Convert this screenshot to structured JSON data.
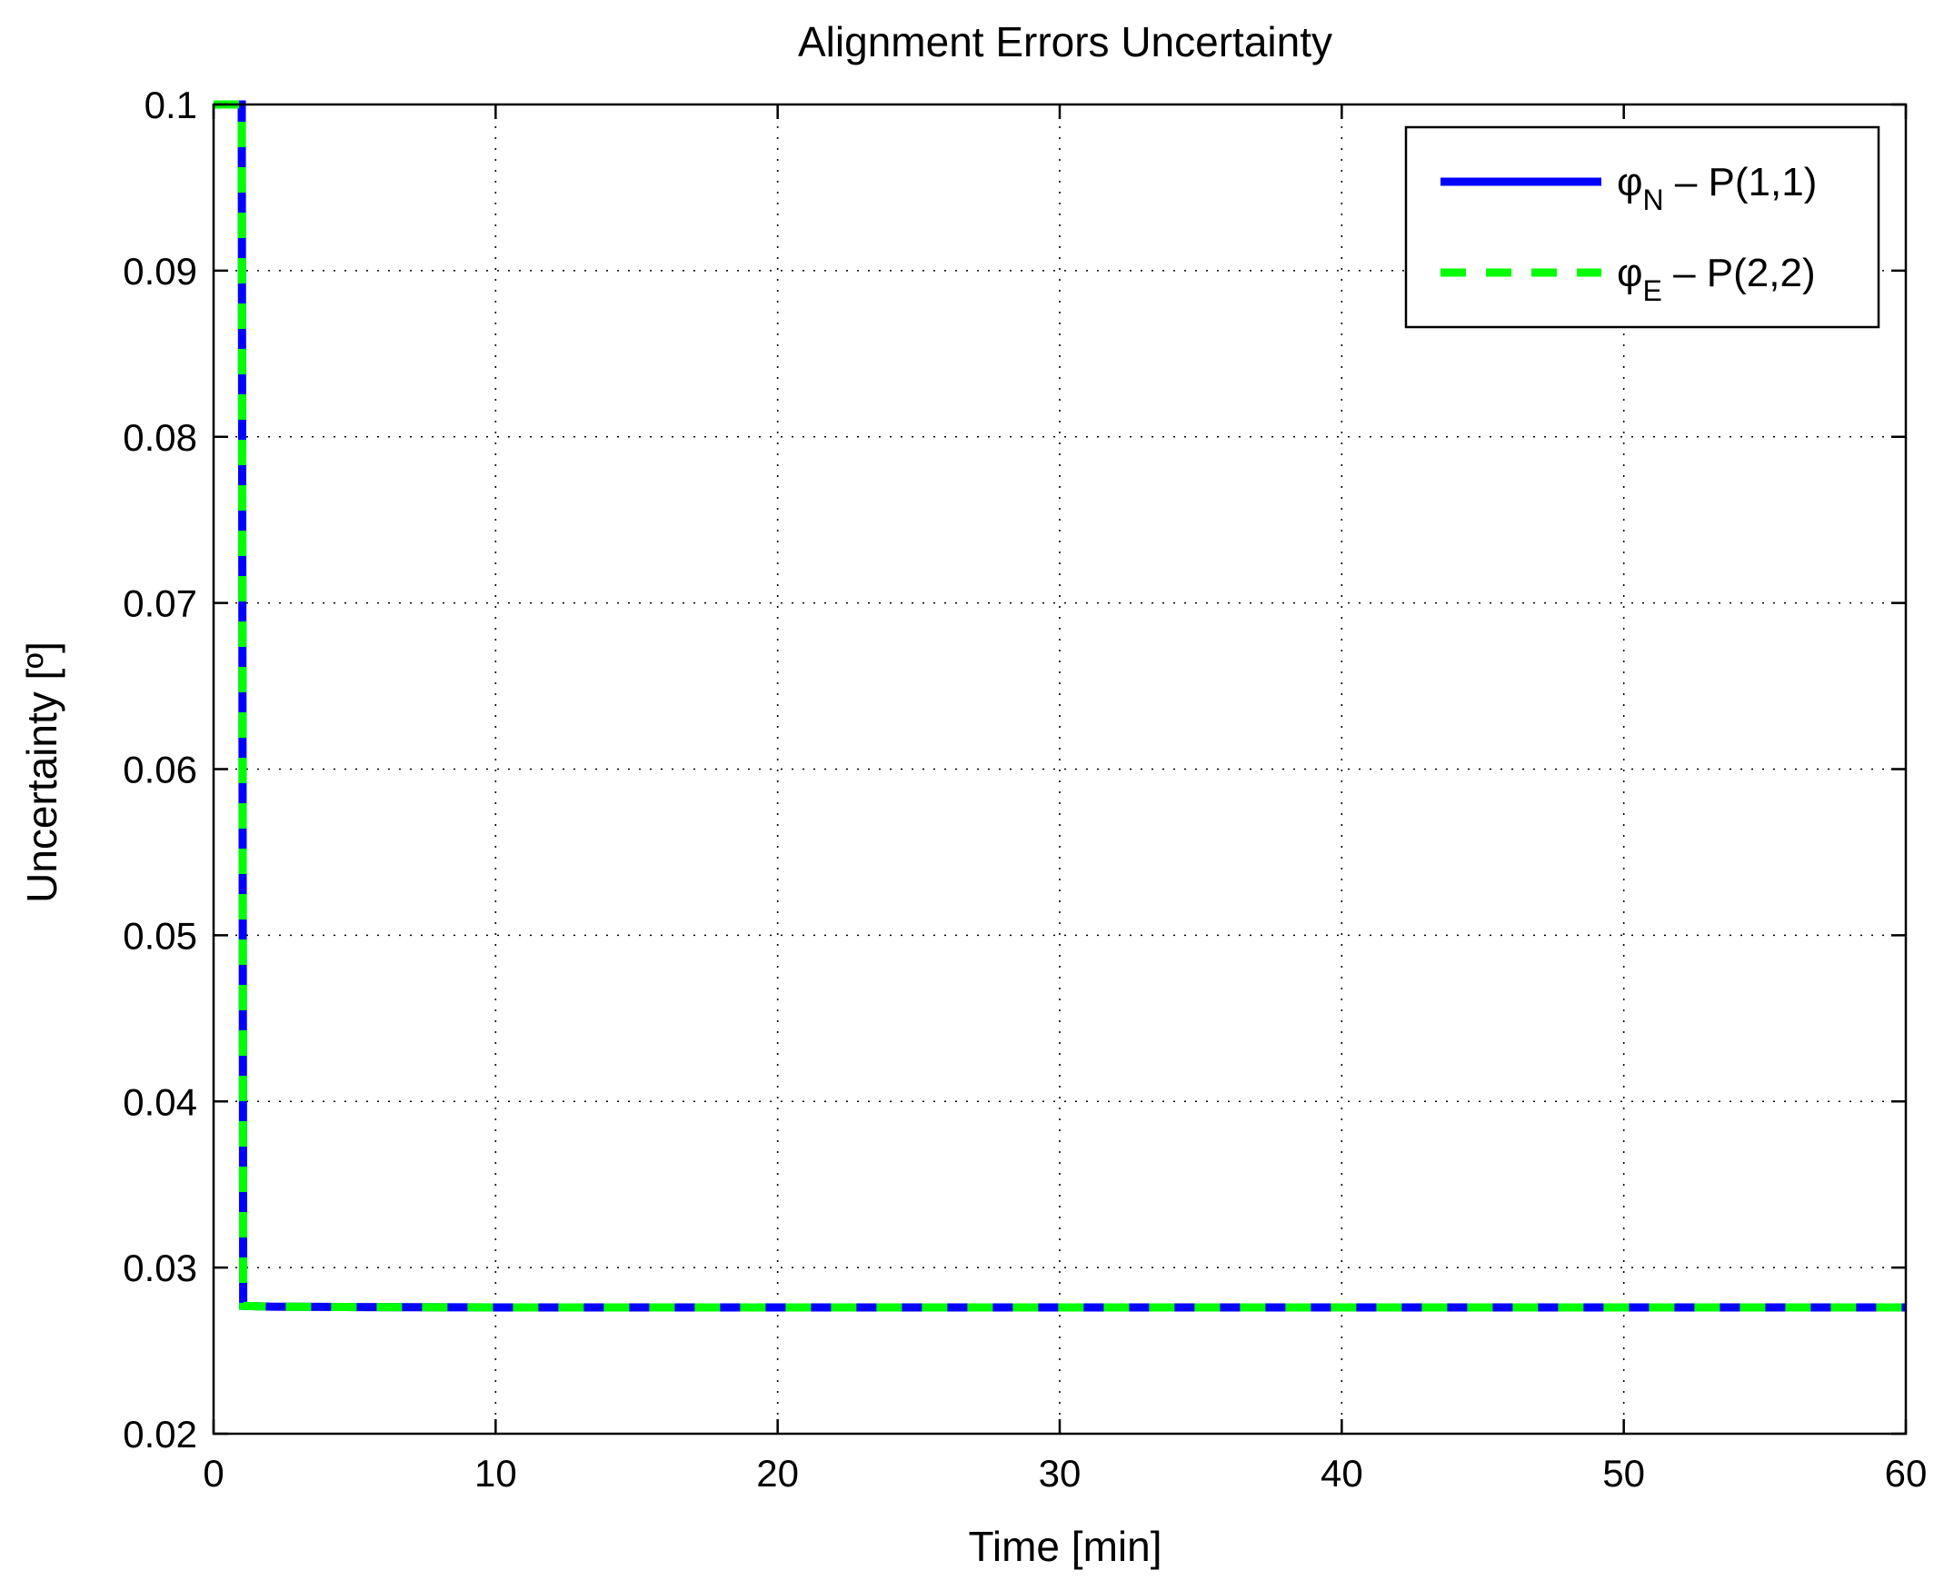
{
  "chart_data": {
    "type": "line",
    "title": "Alignment Errors Uncertainty",
    "xlabel": "Time [min]",
    "ylabel": "Uncertainty [º]",
    "xlim": [
      0,
      60
    ],
    "ylim": [
      0.02,
      0.1
    ],
    "xticks": [
      0,
      10,
      20,
      30,
      40,
      50,
      60
    ],
    "yticks": [
      0.02,
      0.03,
      0.04,
      0.05,
      0.06,
      0.07,
      0.08,
      0.09,
      0.1
    ],
    "xtick_labels": [
      "0",
      "10",
      "20",
      "30",
      "40",
      "50",
      "60"
    ],
    "ytick_labels": [
      "0.02",
      "0.03",
      "0.04",
      "0.05",
      "0.06",
      "0.07",
      "0.08",
      "0.09",
      "0.1"
    ],
    "grid": true,
    "legend_position": "top-right",
    "series": [
      {
        "symbol": "φ",
        "subscript": "N",
        "suffix": " – P(1,1)",
        "color": "#0000ff",
        "style": "solid",
        "x": [
          0,
          1.0,
          1.05,
          2,
          5,
          10,
          20,
          30,
          40,
          50,
          60
        ],
        "y": [
          0.1,
          0.1,
          0.0277,
          0.02765,
          0.02762,
          0.0276,
          0.0276,
          0.0276,
          0.0276,
          0.0276,
          0.0276
        ]
      },
      {
        "symbol": "φ",
        "subscript": "E",
        "suffix": " – P(2,2)",
        "color": "#00ff00",
        "style": "dashed",
        "x": [
          0,
          1.0,
          1.05,
          2,
          5,
          10,
          20,
          30,
          40,
          50,
          60
        ],
        "y": [
          0.1,
          0.1,
          0.0277,
          0.02765,
          0.02762,
          0.0276,
          0.0276,
          0.0276,
          0.0276,
          0.0276,
          0.0276
        ]
      }
    ]
  }
}
